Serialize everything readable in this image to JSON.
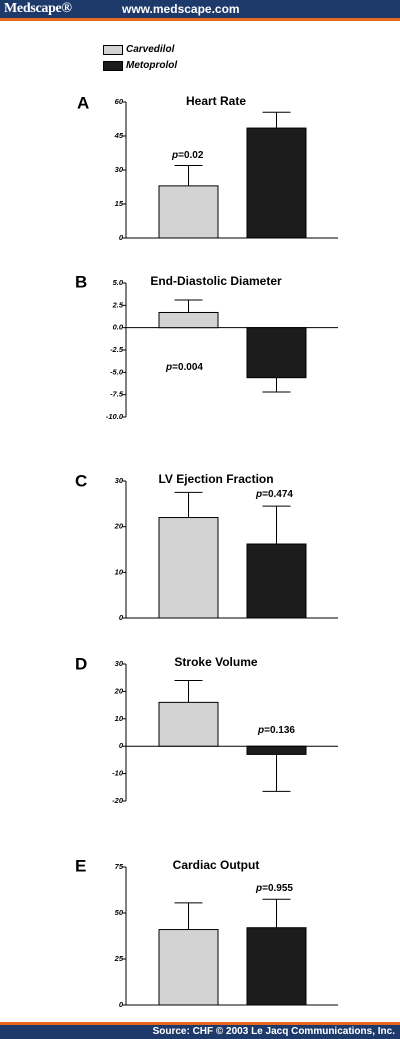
{
  "header": {
    "brand": "Medscape®",
    "url": "www.medscape.com"
  },
  "legend": [
    {
      "label": "Carvedilol",
      "color": "#d3d3d3"
    },
    {
      "label": "Metoprolol",
      "color": "#1c1c1c"
    }
  ],
  "footer": {
    "source": "Source: CHF © 2003 Le Jacq Communications, Inc."
  },
  "chart_data": [
    {
      "type": "bar",
      "panel": "A",
      "title": "Heart Rate",
      "categories": [
        "Carvedilol",
        "Metoprolol"
      ],
      "values": [
        23,
        48.5
      ],
      "errors": [
        9,
        7
      ],
      "ylim": [
        0,
        60
      ],
      "yticks": [
        "0",
        "15",
        "30",
        "45",
        "60"
      ],
      "pvalue": {
        "prefix": "p",
        "text": "=0.02"
      }
    },
    {
      "type": "bar",
      "panel": "B",
      "title": "End-Diastolic Diameter",
      "categories": [
        "Carvedilol",
        "Metoprolol"
      ],
      "values": [
        1.7,
        -5.6
      ],
      "errors": [
        1.4,
        1.6
      ],
      "ylim": [
        -10,
        5
      ],
      "yticks": [
        "5.0",
        "2.5",
        "0.0",
        "-2.5",
        "-5.0",
        "-7.5",
        "-10.0"
      ],
      "pvalue": {
        "prefix": "p",
        "text": "=0.004"
      }
    },
    {
      "type": "bar",
      "panel": "C",
      "title": "LV Ejection Fraction",
      "categories": [
        "Carvedilol",
        "Metoprolol"
      ],
      "values": [
        22,
        16.2
      ],
      "errors": [
        5.5,
        8.3
      ],
      "ylim": [
        0,
        30
      ],
      "yticks": [
        "0",
        "10",
        "20",
        "30"
      ],
      "pvalue": {
        "prefix": "p",
        "text": "=0.474"
      }
    },
    {
      "type": "bar",
      "panel": "D",
      "title": "Stroke Volume",
      "categories": [
        "Carvedilol",
        "Metoprolol"
      ],
      "values": [
        16,
        -3
      ],
      "errors": [
        8,
        13.5
      ],
      "ylim": [
        -20,
        30
      ],
      "yticks": [
        "30",
        "20",
        "10",
        "0",
        "-10",
        "-20"
      ],
      "pvalue": {
        "prefix": "p",
        "text": "=0.136"
      }
    },
    {
      "type": "bar",
      "panel": "E",
      "title": "Cardiac Output",
      "categories": [
        "Carvedilol",
        "Metoprolol"
      ],
      "values": [
        41,
        42
      ],
      "errors": [
        14.5,
        15.5
      ],
      "ylim": [
        0,
        75
      ],
      "yticks": [
        "0",
        "25",
        "50",
        "75"
      ],
      "pvalue": {
        "prefix": "p",
        "text": "=0.955"
      }
    }
  ]
}
